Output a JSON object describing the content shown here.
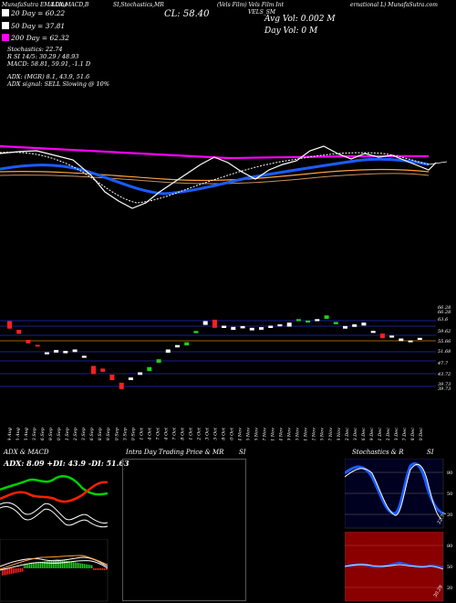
{
  "header": {
    "top_left": "MunafaSutra EMA Line",
    "top_indicators": "ADX,MACD,B",
    "top_stoch": "SI,Stochastics,MR",
    "close_label": "CL: 58.40",
    "ticker_info": "(Vels Film) Vels Film Int",
    "ticker_code": "VELS_SM",
    "site": "ernational L) MunafaSutra.com",
    "avg_vol": "Avg Vol: 0.002  M",
    "day_vol": "Day Vol: 0   M"
  },
  "legend": {
    "ema20": "20   Day = 60.22",
    "ema50": "50   Day = 37.81",
    "ema200": "200  Day = 62.32",
    "colors": {
      "ema20": "#ffffff",
      "ema50": "#ffffff",
      "ema200": "#ff00ff"
    }
  },
  "stats": {
    "stochastics": "Stochastics: 22.74",
    "rsi": "R                SI 14/5: 30.29 / 48.93",
    "macd": "MACD: 58.81, 59.91, -1.1 D",
    "adx": "ADX:                    (MGR) 8.1, 43.9, 51.6",
    "adx_signal": "ADX  signal: SELL  Slowing @ 10%"
  },
  "price_axis": [
    "66.28",
    "66.28",
    "63.6",
    "59.62",
    "55.66",
    "51.68",
    "47.7",
    "43.72",
    "39.73",
    "39.73"
  ],
  "date_axis": [
    "19 Aug",
    "20 Aug",
    "23 Aug",
    "03 Sep",
    "06 Sep",
    "09 Sep",
    "10 Sep",
    "11 Sep",
    "12 Sep",
    "13 Sep",
    "16 Sep",
    "18 Sep",
    "19 Sep",
    "20 Sep",
    "23 Sep",
    "30 Sep",
    "01 Oct",
    "04 Oct",
    "07 Oct",
    "14 Oct",
    "17 Oct",
    "18 Oct",
    "21 Oct",
    "22 Oct",
    "23 Oct",
    "25 Oct",
    "28 Oct",
    "30 Oct",
    "04 Nov",
    "05 Nov",
    "06 Nov",
    "07 Nov",
    "11 Nov",
    "14 Nov",
    "19 Nov",
    "20 Nov",
    "21 Nov",
    "22 Nov",
    "25 Nov",
    "27 Nov",
    "28 Nov",
    "02 Dec",
    "03 Dec",
    "06 Dec",
    "09 Dec",
    "11 Dec",
    "12 Dec",
    "13 Dec",
    "17 Dec",
    "18 Dec",
    "20 Dec"
  ],
  "panels": {
    "adx_title": "ADX  & MACD",
    "adx_values": "ADX: 8.09 +DI: 43.9 -DI: 51.63",
    "intra_title": "Intra  Day Trading Price  & MR",
    "intra_title_si": "SI",
    "stoch_title": "Stochastics & R",
    "stoch_title_si": "SI",
    "stoch_axis": [
      "80",
      "50",
      "20"
    ],
    "stoch_val": "22.74",
    "rsi_axis": [
      "80",
      "50",
      "20"
    ],
    "rsi_val": "30.29"
  },
  "chart_data": [
    {
      "type": "line",
      "name": "price-and-ema",
      "series": [
        {
          "name": "20 Day",
          "color": "#ffffff"
        },
        {
          "name": "50 Day",
          "color": "#ffffff"
        },
        {
          "name": "200 Day",
          "color": "#ff00ff"
        },
        {
          "color": "#1a5cff"
        },
        {
          "color": "#ffa040"
        }
      ]
    },
    {
      "type": "bar",
      "name": "candles",
      "ylim": [
        39.73,
        66.28
      ],
      "candles": [
        [
          63.6,
          61.0,
          "red"
        ],
        [
          60.6,
          59.2,
          "red"
        ],
        [
          57.1,
          55.9,
          "red"
        ],
        [
          55.4,
          54.8,
          "red"
        ],
        [
          52.8,
          52.1,
          "white"
        ],
        [
          53.6,
          52.7,
          "white"
        ],
        [
          53.3,
          52.5,
          "white"
        ],
        [
          53.8,
          52.9,
          "white"
        ],
        [
          51.6,
          50.9,
          "white"
        ],
        [
          48.1,
          45.3,
          "red"
        ],
        [
          47.2,
          46.1,
          "red"
        ],
        [
          45.1,
          43.2,
          "red"
        ],
        [
          42.3,
          40.1,
          "red"
        ],
        [
          44.1,
          43.2,
          "white"
        ],
        [
          45.9,
          45.0,
          "white"
        ],
        [
          47.7,
          46.3,
          "green"
        ],
        [
          50.4,
          49.2,
          "green"
        ],
        [
          53.8,
          52.7,
          "white"
        ],
        [
          55.3,
          54.5,
          "white"
        ],
        [
          56.3,
          55.2,
          "green"
        ],
        [
          60.2,
          59.4,
          "green"
        ],
        [
          63.6,
          62.3,
          "white"
        ],
        [
          64.1,
          61.3,
          "red"
        ],
        [
          62.0,
          61.2,
          "white"
        ],
        [
          61.6,
          60.6,
          "white"
        ],
        [
          61.9,
          61.1,
          "white"
        ],
        [
          61.3,
          60.4,
          "white"
        ],
        [
          61.5,
          60.6,
          "white"
        ],
        [
          62.0,
          61.2,
          "white"
        ],
        [
          62.5,
          61.8,
          "white"
        ],
        [
          63.1,
          61.7,
          "white"
        ],
        [
          64.3,
          63.6,
          "green"
        ],
        [
          63.8,
          63.1,
          "green"
        ],
        [
          64.3,
          63.6,
          "white"
        ],
        [
          65.6,
          64.4,
          "green"
        ],
        [
          63.3,
          62.5,
          "green"
        ],
        [
          61.9,
          61.0,
          "white"
        ],
        [
          62.5,
          61.6,
          "white"
        ],
        [
          63.1,
          62.1,
          "white"
        ],
        [
          60.2,
          59.5,
          "white"
        ],
        [
          59.3,
          57.7,
          "red"
        ],
        [
          58.6,
          57.9,
          "white"
        ],
        [
          57.6,
          56.7,
          "white"
        ],
        [
          56.9,
          56.3,
          "white"
        ],
        [
          57.8,
          57.1,
          "white"
        ]
      ]
    },
    {
      "type": "line",
      "name": "stochastics",
      "ylim": [
        0,
        100
      ],
      "series": [
        {
          "values": [
            60,
            80,
            92,
            70,
            40,
            20,
            12,
            25,
            60,
            88,
            95,
            88,
            60,
            30,
            15,
            8,
            10,
            20,
            18
          ]
        }
      ]
    },
    {
      "type": "line",
      "name": "rsi",
      "ylim": [
        0,
        100
      ],
      "series": [
        {
          "values": [
            55,
            55,
            52,
            50,
            50,
            48,
            50,
            52,
            50,
            55,
            53,
            50,
            50,
            48,
            45,
            44,
            44,
            42,
            40
          ]
        }
      ]
    }
  ]
}
